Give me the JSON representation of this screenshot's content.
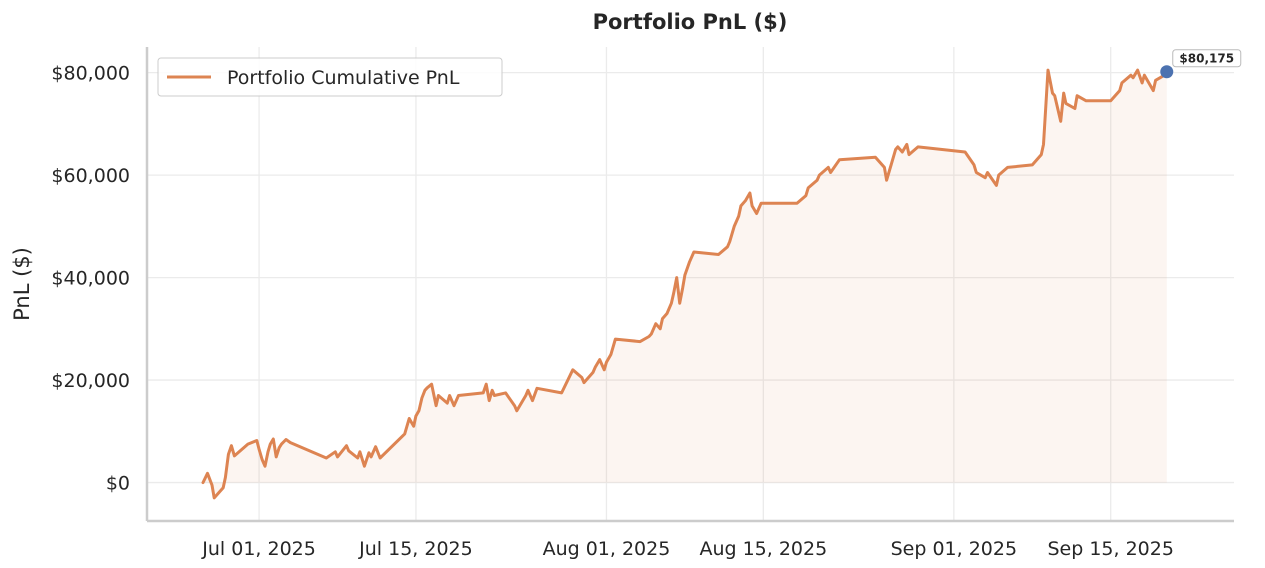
{
  "chart_data": {
    "type": "line",
    "title": "Portfolio PnL ($)",
    "xlabel": "",
    "ylabel": "PnL ($)",
    "x_ticks": [
      "Jul 01, 2025",
      "Jul 15, 2025",
      "Aug 01, 2025",
      "Aug 15, 2025",
      "Sep 01, 2025",
      "Sep 15, 2025"
    ],
    "y_ticks": [
      "$0",
      "$20,000",
      "$40,000",
      "$60,000",
      "$80,000"
    ],
    "ylim": [
      -7500,
      85000
    ],
    "xlim": [
      "2025-06-21",
      "2025-09-26"
    ],
    "grid": true,
    "legend_position": "top-left",
    "colors": {
      "line": "#dd8452",
      "fill": "#dd8452",
      "last_point": "#4c72b0",
      "grid": "#ebebeb",
      "spine": "#cccccc"
    },
    "series": [
      {
        "name": "Portfolio Cumulative PnL",
        "points": [
          [
            "2025-06-26",
            0
          ],
          [
            "2025-06-26",
            1800
          ],
          [
            "2025-06-26",
            -500
          ],
          [
            "2025-06-27",
            -3000
          ],
          [
            "2025-06-27",
            -1000
          ],
          [
            "2025-06-28",
            1000
          ],
          [
            "2025-06-28",
            5500
          ],
          [
            "2025-06-28",
            7200
          ],
          [
            "2025-06-28",
            5200
          ],
          [
            "2025-06-30",
            7500
          ],
          [
            "2025-06-30",
            8200
          ],
          [
            "2025-07-01",
            6500
          ],
          [
            "2025-07-01",
            4500
          ],
          [
            "2025-07-01",
            3200
          ],
          [
            "2025-07-01",
            6000
          ],
          [
            "2025-07-02",
            7500
          ],
          [
            "2025-07-02",
            8500
          ],
          [
            "2025-07-02",
            5000
          ],
          [
            "2025-07-02",
            6800
          ],
          [
            "2025-07-03",
            7500
          ],
          [
            "2025-07-03",
            8400
          ],
          [
            "2025-07-03",
            7800
          ],
          [
            "2025-07-07",
            4800
          ],
          [
            "2025-07-07",
            6000
          ],
          [
            "2025-07-08",
            5000
          ],
          [
            "2025-07-08",
            7200
          ],
          [
            "2025-07-09",
            6200
          ],
          [
            "2025-07-09",
            4800
          ],
          [
            "2025-07-10",
            6000
          ],
          [
            "2025-07-10",
            3200
          ],
          [
            "2025-07-10",
            5800
          ],
          [
            "2025-07-11",
            5000
          ],
          [
            "2025-07-11",
            7000
          ],
          [
            "2025-07-11",
            4800
          ],
          [
            "2025-07-14",
            9500
          ],
          [
            "2025-07-14",
            12500
          ],
          [
            "2025-07-14",
            11000
          ],
          [
            "2025-07-15",
            13000
          ],
          [
            "2025-07-15",
            14000
          ],
          [
            "2025-07-15",
            16500
          ],
          [
            "2025-07-15",
            18000
          ],
          [
            "2025-07-16",
            18500
          ],
          [
            "2025-07-16",
            19200
          ],
          [
            "2025-07-16",
            15000
          ],
          [
            "2025-07-17",
            17000
          ],
          [
            "2025-07-17",
            15500
          ],
          [
            "2025-07-18",
            17000
          ],
          [
            "2025-07-18",
            15000
          ],
          [
            "2025-07-18",
            17000
          ],
          [
            "2025-07-21",
            17500
          ],
          [
            "2025-07-21",
            19200
          ],
          [
            "2025-07-21",
            16000
          ],
          [
            "2025-07-21",
            18000
          ],
          [
            "2025-07-22",
            17000
          ],
          [
            "2025-07-23",
            17500
          ],
          [
            "2025-07-23",
            15000
          ],
          [
            "2025-07-24",
            14000
          ],
          [
            "2025-07-24",
            17000
          ],
          [
            "2025-07-25",
            18000
          ],
          [
            "2025-07-25",
            16000
          ],
          [
            "2025-07-25",
            18400
          ],
          [
            "2025-07-28",
            17500
          ],
          [
            "2025-07-29",
            22000
          ],
          [
            "2025-07-29",
            20500
          ],
          [
            "2025-07-30",
            19500
          ],
          [
            "2025-07-30",
            21500
          ],
          [
            "2025-07-31",
            22500
          ],
          [
            "2025-07-31",
            24000
          ],
          [
            "2025-07-31",
            22000
          ],
          [
            "2025-08-01",
            23500
          ],
          [
            "2025-08-01",
            25000
          ],
          [
            "2025-08-01",
            28000
          ],
          [
            "2025-08-04",
            27500
          ],
          [
            "2025-08-04",
            28500
          ],
          [
            "2025-08-05",
            29000
          ],
          [
            "2025-08-05",
            31000
          ],
          [
            "2025-08-05",
            30000
          ],
          [
            "2025-08-06",
            32000
          ],
          [
            "2025-08-06",
            33000
          ],
          [
            "2025-08-06",
            35000
          ],
          [
            "2025-08-07",
            37000
          ],
          [
            "2025-08-07",
            40000
          ],
          [
            "2025-08-07",
            35000
          ],
          [
            "2025-08-07",
            38000
          ],
          [
            "2025-08-08",
            40500
          ],
          [
            "2025-08-08",
            43000
          ],
          [
            "2025-08-08",
            45000
          ],
          [
            "2025-08-11",
            44500
          ],
          [
            "2025-08-11",
            46000
          ],
          [
            "2025-08-12",
            47000
          ],
          [
            "2025-08-12",
            50000
          ],
          [
            "2025-08-12",
            52000
          ],
          [
            "2025-08-13",
            54000
          ],
          [
            "2025-08-13",
            55000
          ],
          [
            "2025-08-13",
            56500
          ],
          [
            "2025-08-14",
            54000
          ],
          [
            "2025-08-14",
            52500
          ],
          [
            "2025-08-14",
            54500
          ],
          [
            "2025-08-18",
            54500
          ],
          [
            "2025-08-18",
            56000
          ],
          [
            "2025-08-19",
            57500
          ],
          [
            "2025-08-19",
            59000
          ],
          [
            "2025-08-20",
            60000
          ],
          [
            "2025-08-20",
            61500
          ],
          [
            "2025-08-21",
            60500
          ],
          [
            "2025-08-21",
            63000
          ],
          [
            "2025-08-25",
            63500
          ],
          [
            "2025-08-25",
            61500
          ],
          [
            "2025-08-26",
            59000
          ],
          [
            "2025-08-26",
            62000
          ],
          [
            "2025-08-26",
            65000
          ],
          [
            "2025-08-27",
            65500
          ],
          [
            "2025-08-27",
            64500
          ],
          [
            "2025-08-27",
            66000
          ],
          [
            "2025-08-28",
            64000
          ],
          [
            "2025-08-28",
            65500
          ],
          [
            "2025-09-02",
            64500
          ],
          [
            "2025-09-02",
            62000
          ],
          [
            "2025-09-03",
            60500
          ],
          [
            "2025-09-03",
            59500
          ],
          [
            "2025-09-04",
            60500
          ],
          [
            "2025-09-04",
            58000
          ],
          [
            "2025-09-05",
            60000
          ],
          [
            "2025-09-05",
            61500
          ],
          [
            "2025-09-08",
            62000
          ],
          [
            "2025-09-08",
            64000
          ],
          [
            "2025-09-09",
            66000
          ],
          [
            "2025-09-09",
            80500
          ],
          [
            "2025-09-09",
            76000
          ],
          [
            "2025-09-10",
            75500
          ],
          [
            "2025-09-10",
            73000
          ],
          [
            "2025-09-10",
            70500
          ],
          [
            "2025-09-10",
            76000
          ],
          [
            "2025-09-11",
            74000
          ],
          [
            "2025-09-11",
            73000
          ],
          [
            "2025-09-12",
            75500
          ],
          [
            "2025-09-12",
            74500
          ],
          [
            "2025-09-15",
            74500
          ],
          [
            "2025-09-15",
            76500
          ],
          [
            "2025-09-16",
            78000
          ],
          [
            "2025-09-16",
            79500
          ],
          [
            "2025-09-17",
            79000
          ],
          [
            "2025-09-17",
            80500
          ],
          [
            "2025-09-17",
            78000
          ],
          [
            "2025-09-18",
            79500
          ],
          [
            "2025-09-18",
            76500
          ],
          [
            "2025-09-19",
            78500
          ],
          [
            "2025-09-19",
            79500
          ],
          [
            "2025-09-20",
            80175
          ]
        ]
      }
    ],
    "last_value_label": "$80,175"
  }
}
